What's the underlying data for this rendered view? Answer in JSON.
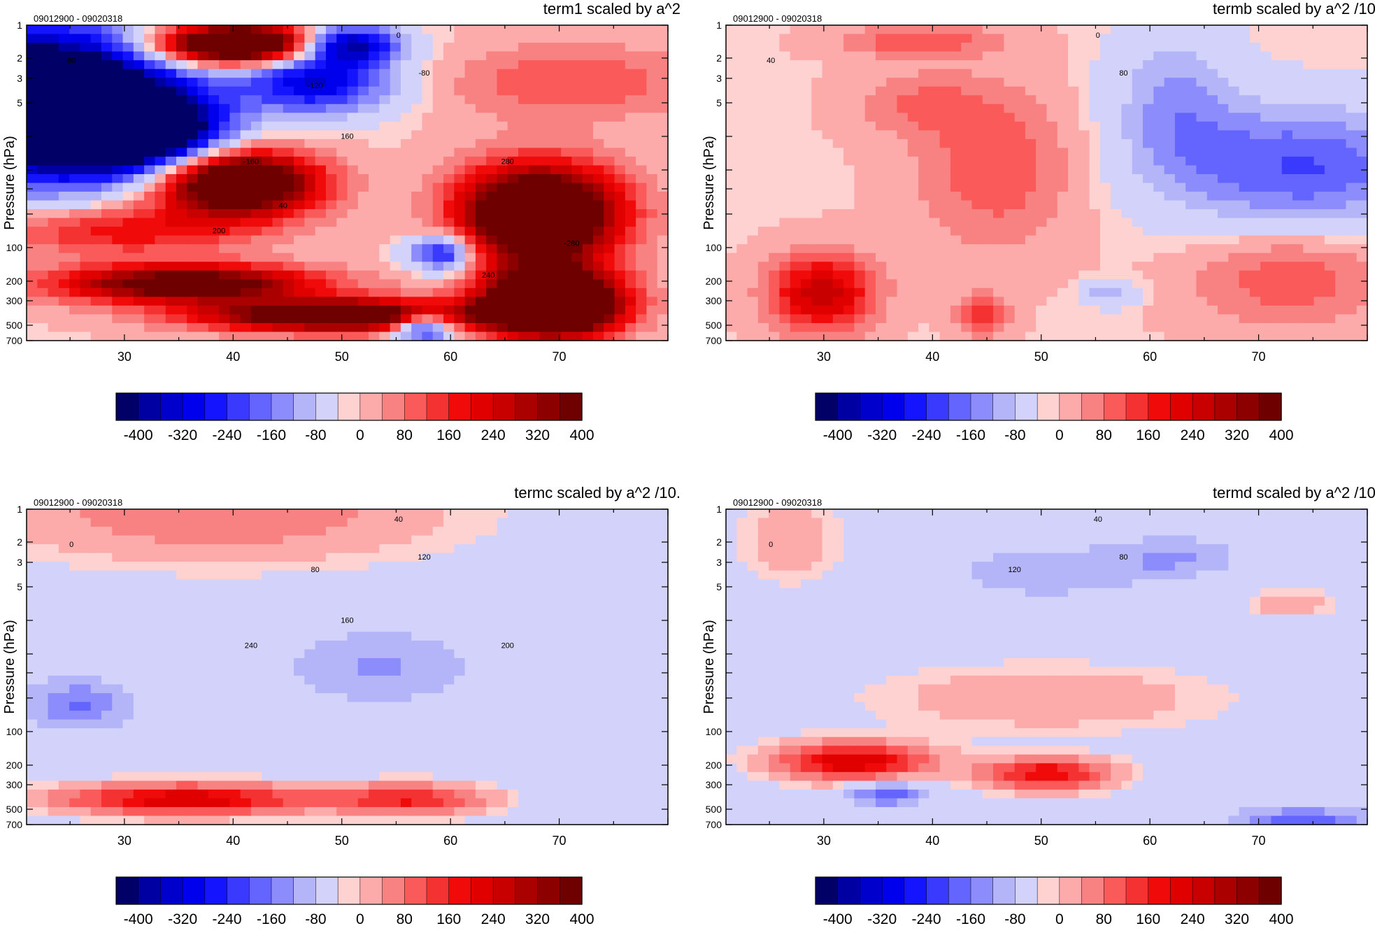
{
  "colorbar": {
    "colors": [
      "#000066",
      "#0000a2",
      "#0000cc",
      "#0000ec",
      "#1414ff",
      "#3a3aff",
      "#6464ff",
      "#8c8cfd",
      "#b4b4f8",
      "#d2d2fa",
      "#ffd2d2",
      "#fcaaaa",
      "#f88282",
      "#fa5a5a",
      "#f53232",
      "#f00a0a",
      "#e10000",
      "#c80000",
      "#aa0000",
      "#8c0000",
      "#6e0000"
    ],
    "labels": [
      "-400",
      "-320",
      "-240",
      "-160",
      "-80",
      "0",
      "80",
      "160",
      "240",
      "320",
      "400"
    ]
  },
  "panels": [
    {
      "title": "term1 scaled by a^2",
      "date_range": "09012900 - 09020318",
      "ylabel": "Pressure (hPa)",
      "chart_data": {
        "type": "heatmap",
        "x_ticks": [
          30,
          40,
          50,
          60,
          70
        ],
        "xlim": [
          21,
          80
        ],
        "y_ticks": [
          1,
          2,
          3,
          5,
          10,
          20,
          30,
          50,
          100,
          200,
          300,
          500,
          700
        ],
        "y_tick_labels": [
          "1",
          "2",
          "3",
          "5",
          "",
          "",
          "",
          "",
          "100",
          "200",
          "300",
          "500",
          "700"
        ],
        "y_scale": "irregular pressure levels",
        "contour_labels": [
          "0",
          "80",
          "-80",
          "-120",
          "160",
          "-160",
          "280",
          "40",
          "200",
          "240",
          "-280"
        ]
      }
    },
    {
      "title": "termb scaled by a^2 /10.",
      "date_range": "09012900 - 09020318",
      "ylabel": "Pressure (hPa)",
      "chart_data": {
        "type": "heatmap",
        "x_ticks": [
          30,
          40,
          50,
          60,
          70
        ],
        "xlim": [
          21,
          80
        ],
        "y_ticks": [
          1,
          2,
          3,
          5,
          10,
          20,
          30,
          50,
          100,
          200,
          300,
          500,
          700
        ],
        "y_tick_labels": [
          "1",
          "2",
          "3",
          "5",
          "",
          "",
          "",
          "",
          "100",
          "200",
          "300",
          "500",
          "700"
        ],
        "contour_labels": [
          "0",
          "40",
          "80"
        ]
      }
    },
    {
      "title": "termc scaled by a^2 /10.",
      "date_range": "09012900 - 09020318",
      "ylabel": "Pressure (hPa)",
      "chart_data": {
        "type": "heatmap",
        "x_ticks": [
          30,
          40,
          50,
          60,
          70
        ],
        "xlim": [
          21,
          80
        ],
        "y_ticks": [
          1,
          2,
          3,
          5,
          10,
          20,
          30,
          50,
          100,
          200,
          300,
          500,
          700
        ],
        "y_tick_labels": [
          "1",
          "2",
          "3",
          "5",
          "",
          "",
          "",
          "",
          "100",
          "200",
          "300",
          "500",
          "700"
        ],
        "contour_labels": [
          "40",
          "0",
          "120",
          "80",
          "160",
          "240",
          "200"
        ]
      }
    },
    {
      "title": "termd scaled by a^2 /10.",
      "date_range": "09012900 - 09020318",
      "ylabel": "Pressure (hPa)",
      "chart_data": {
        "type": "heatmap",
        "x_ticks": [
          30,
          40,
          50,
          60,
          70
        ],
        "xlim": [
          21,
          80
        ],
        "y_ticks": [
          1,
          2,
          3,
          5,
          10,
          20,
          30,
          50,
          100,
          200,
          300,
          500,
          700
        ],
        "y_tick_labels": [
          "1",
          "2",
          "3",
          "5",
          "",
          "",
          "",
          "",
          "100",
          "200",
          "300",
          "500",
          "700"
        ],
        "contour_labels": [
          "40",
          "0",
          "80",
          "120"
        ]
      }
    }
  ]
}
